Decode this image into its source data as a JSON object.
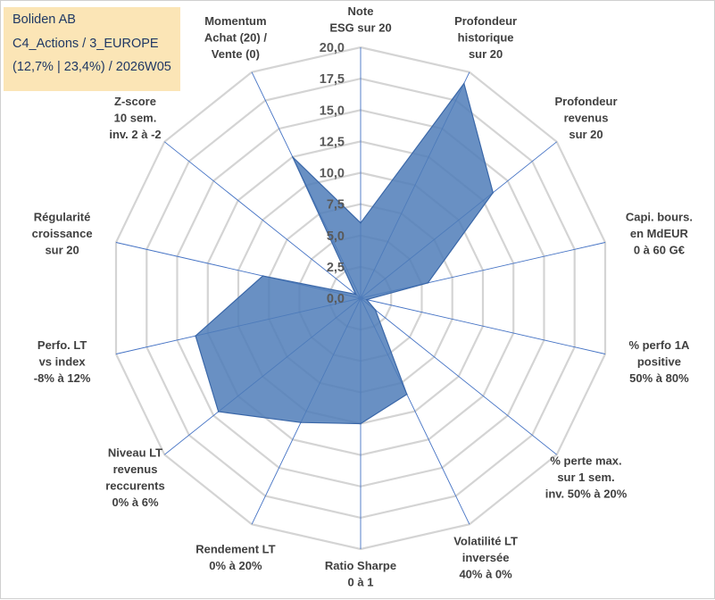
{
  "header": {
    "line1": "Boliden AB",
    "line2": "C4_Actions / 3_EUROPE",
    "line3": "(12,7% | 23,4%) / 2026W05"
  },
  "colors": {
    "fill": "#4f7db8",
    "stroke": "#3a67a8",
    "grid": "#d4d4d4",
    "spoke": "#4472c4",
    "header_bg": "#fbe5b6",
    "header_text": "#1f3864"
  },
  "chart_data": {
    "type": "radar",
    "rmin": 0,
    "rmax": 20,
    "ticks": [
      0,
      2.5,
      5,
      7.5,
      10,
      12.5,
      15,
      17.5,
      20
    ],
    "tick_labels": [
      "0,0",
      "2,5",
      "5,0",
      "7,5",
      "10,0",
      "12,5",
      "15,0",
      "17,5",
      "20,0"
    ],
    "axes": [
      {
        "label_lines": [
          "Note",
          "ESG sur 20"
        ]
      },
      {
        "label_lines": [
          "Profondeur",
          "historique",
          "sur 20"
        ]
      },
      {
        "label_lines": [
          "Profondeur",
          "revenus",
          "sur 20"
        ]
      },
      {
        "label_lines": [
          "Capi. bours.",
          "en MdEUR",
          "0 à 60 G€"
        ]
      },
      {
        "label_lines": [
          "% perfo 1A",
          "positive",
          "50% à 80%"
        ]
      },
      {
        "label_lines": [
          "% perte max.",
          "sur 1 sem.",
          "inv. 50% à 20%"
        ]
      },
      {
        "label_lines": [
          "Volatilité LT",
          "inversée",
          "40% à 0%"
        ]
      },
      {
        "label_lines": [
          "Ratio Sharpe",
          "0 à 1"
        ]
      },
      {
        "label_lines": [
          "Rendement LT",
          "0% à 20%"
        ]
      },
      {
        "label_lines": [
          "Niveau LT",
          "revenus",
          "reccurents",
          "0% à 6%"
        ]
      },
      {
        "label_lines": [
          "Perfo. LT",
          "vs index",
          "-8% à 12%"
        ]
      },
      {
        "label_lines": [
          "Régularité",
          "croissance",
          "sur 20"
        ]
      },
      {
        "label_lines": [
          "Z-score",
          "10 sem.",
          "inv. 2 à -2"
        ]
      },
      {
        "label_lines": [
          "Momentum",
          "Achat (20) /",
          "Vente (0)"
        ]
      }
    ],
    "series": [
      {
        "name": "Boliden AB",
        "values": [
          6.0,
          19.0,
          13.5,
          5.5,
          0.5,
          1.5,
          8.5,
          10.0,
          11.0,
          14.5,
          13.5,
          8.0,
          0.5,
          12.5
        ]
      }
    ]
  }
}
